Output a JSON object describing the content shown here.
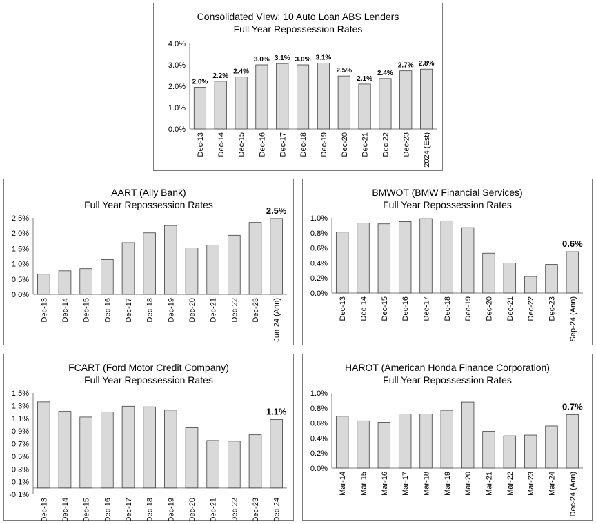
{
  "chart_data": [
    {
      "type": "bar",
      "title": "Consolidated VIew: 10 Auto Loan ABS Lenders",
      "subtitle": "Full Year Repossession Rates",
      "categories": [
        "Dec-13",
        "Dec-14",
        "Dec-15",
        "Dec-16",
        "Dec-17",
        "Dec-18",
        "Dec-19",
        "Dec-20",
        "Dec-21",
        "Dec-22",
        "Dec-23",
        "2024 (Est)"
      ],
      "values": [
        1.95,
        2.23,
        2.43,
        3.0,
        3.06,
        3.0,
        3.08,
        2.48,
        2.1,
        2.36,
        2.72,
        2.8
      ],
      "data_labels": [
        "2.0%",
        "2.2%",
        "2.4%",
        "3.0%",
        "3.1%",
        "3.0%",
        "3.1%",
        "2.5%",
        "2.1%",
        "2.4%",
        "2.7%",
        "2.8%"
      ],
      "yticks": [
        "0.0%",
        "1.0%",
        "2.0%",
        "3.0%",
        "4.0%"
      ],
      "ylim": [
        0,
        4.0
      ],
      "xlabel": "",
      "ylabel": "",
      "grid": false
    },
    {
      "type": "bar",
      "title": "AART (Ally Bank)",
      "subtitle": "Full Year Repossession Rates",
      "categories": [
        "Dec-13",
        "Dec-14",
        "Dec-15",
        "Dec-16",
        "Dec-17",
        "Dec-18",
        "Dec-19",
        "Dec-20",
        "Dec-21",
        "Dec-22",
        "Dec-23",
        "Jun-24 (Ann)"
      ],
      "values": [
        0.66,
        0.77,
        0.84,
        1.14,
        1.69,
        2.01,
        2.25,
        1.52,
        1.61,
        1.93,
        2.35,
        2.48
      ],
      "last_label": "2.5%",
      "yticks": [
        "0.0%",
        "0.5%",
        "1.0%",
        "1.5%",
        "2.0%",
        "2.5%"
      ],
      "ylim": [
        0,
        2.5
      ],
      "xlabel": "",
      "ylabel": "",
      "grid": false
    },
    {
      "type": "bar",
      "title": "BMWOT (BMW Financial Services)",
      "subtitle": "Full Year Repossession Rates",
      "categories": [
        "Dec-13",
        "Dec-14",
        "Dec-15",
        "Dec-16",
        "Dec-17",
        "Dec-18",
        "Dec-19",
        "Dec-20",
        "Dec-21",
        "Dec-22",
        "Dec-23",
        "Sep-24 (Ann)"
      ],
      "values": [
        0.81,
        0.93,
        0.92,
        0.95,
        0.99,
        0.96,
        0.87,
        0.53,
        0.4,
        0.22,
        0.38,
        0.55
      ],
      "last_label": "0.6%",
      "yticks": [
        "0.0%",
        "0.2%",
        "0.4%",
        "0.6%",
        "0.8%",
        "1.0%"
      ],
      "ylim": [
        0,
        1.0
      ],
      "xlabel": "",
      "ylabel": "",
      "grid": false
    },
    {
      "type": "bar",
      "title": "FCART (Ford Motor Credit Company)",
      "subtitle": "Full Year Repossession Rates",
      "categories": [
        "Dec-13",
        "Dec-14",
        "Dec-15",
        "Dec-16",
        "Dec-17",
        "Dec-18",
        "Dec-19",
        "Dec-20",
        "Dec-21",
        "Dec-22",
        "Dec-23",
        "Dec-24"
      ],
      "values": [
        1.36,
        1.21,
        1.12,
        1.2,
        1.29,
        1.28,
        1.23,
        0.95,
        0.75,
        0.74,
        0.84,
        1.08
      ],
      "last_label": "1.1%",
      "yticks": [
        "-0.1%",
        "0.1%",
        "0.3%",
        "0.5%",
        "0.7%",
        "0.9%",
        "1.1%",
        "1.3%",
        "1.5%"
      ],
      "ylim": [
        -0.1,
        1.5
      ],
      "xlabel": "",
      "ylabel": "",
      "grid": false
    },
    {
      "type": "bar",
      "title": "HAROT (American Honda Finance Corporation)",
      "subtitle": "Full Year Repossession Rates",
      "categories": [
        "Mar-14",
        "Mar-15",
        "Mar-16",
        "Mar-17",
        "Mar-18",
        "Mar-19",
        "Mar-20",
        "Mar-21",
        "Mar-22",
        "Mar-23",
        "Mar-24",
        "Dec-24 (Ann)"
      ],
      "values": [
        0.69,
        0.63,
        0.61,
        0.72,
        0.72,
        0.77,
        0.88,
        0.49,
        0.43,
        0.44,
        0.56,
        0.71
      ],
      "last_label": "0.7%",
      "yticks": [
        "0.0%",
        "0.2%",
        "0.4%",
        "0.6%",
        "0.8%",
        "1.0%"
      ],
      "ylim": [
        0,
        1.0
      ],
      "xlabel": "",
      "ylabel": "",
      "grid": false
    }
  ],
  "colors": {
    "bar_fill": "#d9d9d9",
    "bar_stroke": "#404040",
    "axis": "#7f7f7f",
    "frame": "#7a7a7a"
  }
}
